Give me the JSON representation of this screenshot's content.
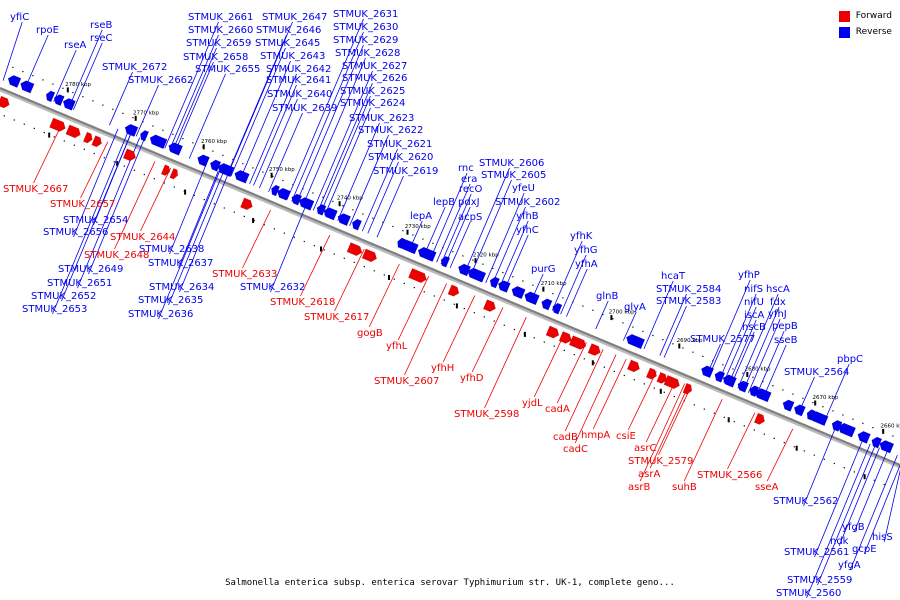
{
  "legend": {
    "forward_label": "Forward",
    "reverse_label": "Reverse",
    "forward_color": "#ee0000",
    "reverse_color": "#0000ee"
  },
  "caption": "Salmonella enterica subsp. enterica serovar Typhimurium str. UK-1, complete geno...",
  "colors": {
    "forward": "#ee0000",
    "reverse": "#0000ee",
    "backbone": "#808080"
  },
  "axis": {
    "labels": [
      "2780 kbp",
      "2770 kbp",
      "2760 kbp",
      "2750 kbp",
      "2740 kbp",
      "2730 kbp",
      "2720 kbp",
      "2710 kbp",
      "2700 kbp",
      "2690 kbp",
      "2680 kbp",
      "2670 kbp",
      "2660 kbp"
    ]
  },
  "genes_reverse": [
    "yfiC",
    "rpoE",
    "rseA",
    "rseB",
    "rseC",
    "STMUK_2672",
    "STMUK_2662",
    "STMUK_2661",
    "STMUK_2660",
    "STMUK_2659",
    "STMUK_2658",
    "STMUK_2655",
    "STMUK_2647",
    "STMUK_2646",
    "STMUK_2645",
    "STMUK_2643",
    "STMUK_2642",
    "STMUK_2641",
    "STMUK_2640",
    "STMUK_2639",
    "STMUK_2631",
    "STMUK_2630",
    "STMUK_2629",
    "STMUK_2628",
    "STMUK_2627",
    "STMUK_2626",
    "STMUK_2625",
    "STMUK_2624",
    "STMUK_2623",
    "STMUK_2622",
    "STMUK_2621",
    "STMUK_2620",
    "STMUK_2619",
    "rnc",
    "era",
    "recO",
    "pdxJ",
    "acpS",
    "lepB",
    "lepA",
    "STMUK_2606",
    "STMUK_2605",
    "yfeU",
    "STMUK_2602",
    "yfhB",
    "yfhC",
    "purG",
    "yfhK",
    "yfhG",
    "yfhA",
    "glnB",
    "glyA",
    "hcaT",
    "STMUK_2584",
    "STMUK_2583",
    "STMUK_2577",
    "yfhP",
    "nifS",
    "hscA",
    "nifU",
    "fdx",
    "iscA",
    "yfhJ",
    "hscB",
    "pepB",
    "sseB",
    "pbpC",
    "STMUK_2564",
    "STMUK_2562",
    "ndk",
    "yfgB",
    "STMUK_2561",
    "gcpE",
    "hisS",
    "yfgA",
    "STMUK_2559",
    "STMUK_2560",
    "STMUK_2654",
    "STMUK_2656",
    "STMUK_2638",
    "STMUK_2649",
    "STMUK_2637",
    "STMUK_2651",
    "STMUK_2634",
    "STMUK_2652",
    "STMUK_2635",
    "STMUK_2653",
    "STMUK_2636",
    "STMUK_2632"
  ],
  "genes_forward": [
    "STMUK_2667",
    "STMUK_2657",
    "STMUK_2644",
    "STMUK_2648",
    "STMUK_2633",
    "STMUK_2618",
    "STMUK_2617",
    "gogB",
    "yfhL",
    "yfhH",
    "STMUK_2607",
    "yfhD",
    "STMUK_2598",
    "yjdL",
    "cadA",
    "cadB",
    "cadC",
    "hmpA",
    "csiE",
    "asrC",
    "STMUK_2579",
    "asrA",
    "asrB",
    "suhB",
    "STMUK_2566",
    "sseA"
  ]
}
